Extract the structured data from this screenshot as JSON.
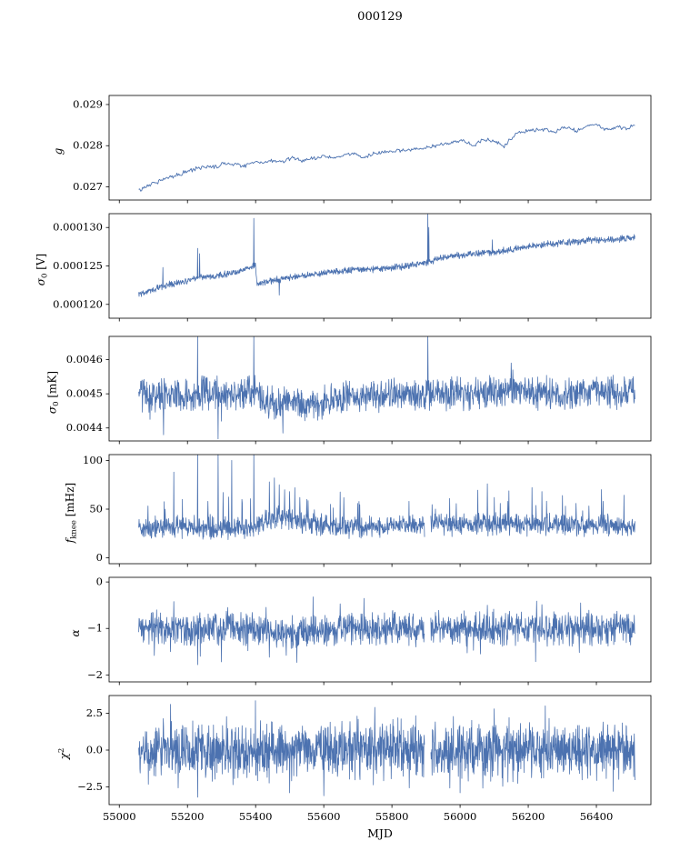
{
  "title": "000129",
  "figure": {
    "background": "#ffffff",
    "line_color": "#4c72b0",
    "axis_color": "#000000"
  },
  "x_axis": {
    "label": "MJD",
    "xlim": [
      54970,
      56560
    ],
    "tick_values": [
      55000,
      55200,
      55400,
      55600,
      55800,
      56000,
      56200,
      56400
    ],
    "tick_labels": [
      "55000",
      "55200",
      "55400",
      "55600",
      "55800",
      "56000",
      "56200",
      "56400"
    ],
    "data_range": [
      55057,
      56513
    ]
  },
  "chart_data": [
    {
      "type": "line",
      "ylabel": {
        "var": "g",
        "sub": "",
        "sup": "",
        "unit": ""
      },
      "ylim": [
        0.02668,
        0.02922
      ],
      "yticks": {
        "values": [
          0.027,
          0.028,
          0.029
        ],
        "labels": [
          "0.027",
          "0.028",
          "0.029"
        ]
      },
      "samples": 520,
      "noise": {
        "model": "uniform2",
        "amp": 6e-05
      },
      "trend": [
        [
          55057,
          0.0269
        ],
        [
          55080,
          0.02702
        ],
        [
          55110,
          0.02712
        ],
        [
          55140,
          0.02722
        ],
        [
          55170,
          0.02729
        ],
        [
          55200,
          0.02737
        ],
        [
          55230,
          0.02745
        ],
        [
          55260,
          0.0275
        ],
        [
          55280,
          0.02747
        ],
        [
          55310,
          0.02758
        ],
        [
          55340,
          0.02755
        ],
        [
          55370,
          0.02752
        ],
        [
          55400,
          0.02762
        ],
        [
          55420,
          0.02758
        ],
        [
          55450,
          0.02764
        ],
        [
          55480,
          0.02762
        ],
        [
          55510,
          0.0277
        ],
        [
          55540,
          0.02764
        ],
        [
          55570,
          0.02768
        ],
        [
          55600,
          0.02775
        ],
        [
          55630,
          0.0277
        ],
        [
          55660,
          0.02778
        ],
        [
          55690,
          0.0278
        ],
        [
          55710,
          0.0277
        ],
        [
          55740,
          0.0278
        ],
        [
          55770,
          0.02782
        ],
        [
          55800,
          0.02785
        ],
        [
          55830,
          0.02788
        ],
        [
          55860,
          0.0279
        ],
        [
          55890,
          0.02794
        ],
        [
          55920,
          0.02798
        ],
        [
          55950,
          0.02802
        ],
        [
          55980,
          0.02808
        ],
        [
          56010,
          0.02812
        ],
        [
          56040,
          0.028
        ],
        [
          56070,
          0.02815
        ],
        [
          56100,
          0.02812
        ],
        [
          56130,
          0.02798
        ],
        [
          56160,
          0.02828
        ],
        [
          56190,
          0.02833
        ],
        [
          56220,
          0.02838
        ],
        [
          56250,
          0.0284
        ],
        [
          56280,
          0.02832
        ],
        [
          56310,
          0.02845
        ],
        [
          56340,
          0.02836
        ],
        [
          56370,
          0.02848
        ],
        [
          56400,
          0.0285
        ],
        [
          56430,
          0.02838
        ],
        [
          56460,
          0.02846
        ],
        [
          56490,
          0.02842
        ],
        [
          56513,
          0.0285
        ]
      ],
      "spikes": [],
      "gaps": []
    },
    {
      "type": "line",
      "ylabel": {
        "var": "σ",
        "sub": "0",
        "sup": "",
        "unit": " [V]"
      },
      "ylim": [
        0.0001182,
        0.0001318
      ],
      "yticks": {
        "values": [
          0.00012,
          0.000125,
          0.00013
        ],
        "labels": [
          "0.000120",
          "0.000125",
          "0.000130"
        ]
      },
      "samples": 1500,
      "noise": {
        "model": "uniform2",
        "amp": 5e-07
      },
      "trend": [
        [
          55057,
          0.0001213
        ],
        [
          55100,
          0.000122
        ],
        [
          55150,
          0.0001226
        ],
        [
          55200,
          0.0001231
        ],
        [
          55250,
          0.0001236
        ],
        [
          55300,
          0.0001238
        ],
        [
          55350,
          0.0001243
        ],
        [
          55393,
          0.000125
        ],
        [
          55400,
          0.0001252
        ],
        [
          55403,
          0.0001227
        ],
        [
          55450,
          0.0001231
        ],
        [
          55500,
          0.0001235
        ],
        [
          55550,
          0.0001238
        ],
        [
          55600,
          0.0001241
        ],
        [
          55650,
          0.0001243
        ],
        [
          55700,
          0.0001245
        ],
        [
          55750,
          0.0001246
        ],
        [
          55800,
          0.0001248
        ],
        [
          55850,
          0.000125
        ],
        [
          55900,
          0.0001254
        ],
        [
          55950,
          0.0001261
        ],
        [
          56000,
          0.0001264
        ],
        [
          56050,
          0.0001266
        ],
        [
          56100,
          0.0001268
        ],
        [
          56150,
          0.0001271
        ],
        [
          56200,
          0.0001275
        ],
        [
          56250,
          0.0001278
        ],
        [
          56300,
          0.000128
        ],
        [
          56350,
          0.0001282
        ],
        [
          56400,
          0.0001284
        ],
        [
          56450,
          0.0001284
        ],
        [
          56513,
          0.0001287
        ]
      ],
      "spikes": [
        [
          55128,
          0.0001248
        ],
        [
          55230,
          0.0001273
        ],
        [
          55236,
          0.0001266
        ],
        [
          55395,
          0.0001312
        ],
        [
          55470,
          0.0001212
        ],
        [
          55905,
          0.0001317
        ],
        [
          55908,
          0.00013
        ],
        [
          56095,
          0.0001284
        ]
      ],
      "gaps": []
    },
    {
      "type": "line",
      "ylabel": {
        "var": "σ",
        "sub": "0",
        "sup": "",
        "unit": " [mK]"
      },
      "ylim": [
        0.004362,
        0.004668
      ],
      "yticks": {
        "values": [
          0.0044,
          0.0045,
          0.0046
        ],
        "labels": [
          "0.0044",
          "0.0045",
          "0.0046"
        ]
      },
      "samples": 1500,
      "noise": {
        "model": "uniform2",
        "amp": 5.5e-05
      },
      "trend": [
        [
          55057,
          0.0045
        ],
        [
          55100,
          0.004492
        ],
        [
          55150,
          0.004497
        ],
        [
          55200,
          0.0045
        ],
        [
          55250,
          0.004503
        ],
        [
          55300,
          0.0045
        ],
        [
          55350,
          0.004502
        ],
        [
          55400,
          0.004508
        ],
        [
          55425,
          0.004478
        ],
        [
          55470,
          0.004472
        ],
        [
          55520,
          0.00447
        ],
        [
          55570,
          0.004473
        ],
        [
          55620,
          0.00448
        ],
        [
          55670,
          0.004488
        ],
        [
          55720,
          0.00449
        ],
        [
          55770,
          0.004495
        ],
        [
          55820,
          0.0045
        ],
        [
          55870,
          0.004498
        ],
        [
          55920,
          0.0045
        ],
        [
          55970,
          0.0045
        ],
        [
          56020,
          0.0045
        ],
        [
          56070,
          0.004502
        ],
        [
          56120,
          0.004508
        ],
        [
          56160,
          0.004515
        ],
        [
          56200,
          0.004508
        ],
        [
          56250,
          0.004502
        ],
        [
          56300,
          0.0045
        ],
        [
          56350,
          0.004505
        ],
        [
          56400,
          0.004508
        ],
        [
          56450,
          0.004505
        ],
        [
          56513,
          0.004508
        ]
      ],
      "spikes": [
        [
          55090,
          0.004425
        ],
        [
          55130,
          0.00438
        ],
        [
          55230,
          0.004668
        ],
        [
          55290,
          0.004368
        ],
        [
          55300,
          0.00442
        ],
        [
          55395,
          0.00467
        ],
        [
          55480,
          0.004385
        ],
        [
          55905,
          0.004672
        ],
        [
          56150,
          0.00459
        ],
        [
          56155,
          0.00457
        ]
      ],
      "gaps": []
    },
    {
      "type": "line",
      "ylabel": {
        "var": "f",
        "sub": "knee",
        "sup": "",
        "unit": " [mHz]"
      },
      "ylim": [
        -6,
        106
      ],
      "yticks": {
        "values": [
          0,
          50,
          100
        ],
        "labels": [
          "0",
          "50",
          "100"
        ]
      },
      "samples": 1500,
      "noise": {
        "model": "uniform2",
        "amp": 13,
        "tail_prob": 0.025,
        "tail_base": 8,
        "tail_scale": 30,
        "tail_sign": 1
      },
      "trend": [
        [
          55057,
          30
        ],
        [
          55100,
          31
        ],
        [
          55150,
          32
        ],
        [
          55200,
          31
        ],
        [
          55250,
          31
        ],
        [
          55300,
          31
        ],
        [
          55350,
          31
        ],
        [
          55400,
          33
        ],
        [
          55430,
          38
        ],
        [
          55460,
          42
        ],
        [
          55490,
          41
        ],
        [
          55520,
          38
        ],
        [
          55560,
          35
        ],
        [
          55600,
          33
        ],
        [
          55650,
          32
        ],
        [
          55700,
          32
        ],
        [
          55750,
          33
        ],
        [
          55800,
          33
        ],
        [
          55850,
          33
        ],
        [
          55900,
          33
        ],
        [
          55950,
          34
        ],
        [
          56000,
          34
        ],
        [
          56050,
          35
        ],
        [
          56100,
          35
        ],
        [
          56150,
          34
        ],
        [
          56200,
          33
        ],
        [
          56250,
          34
        ],
        [
          56300,
          34
        ],
        [
          56350,
          33
        ],
        [
          56400,
          33
        ],
        [
          56450,
          33
        ],
        [
          56513,
          32
        ]
      ],
      "spikes": [
        [
          55160,
          88
        ],
        [
          55185,
          60
        ],
        [
          55230,
          108
        ],
        [
          55260,
          58
        ],
        [
          55290,
          108
        ],
        [
          55330,
          100
        ],
        [
          55360,
          60
        ],
        [
          55395,
          108
        ],
        [
          55440,
          78
        ],
        [
          55455,
          82
        ],
        [
          55470,
          75
        ],
        [
          55485,
          70
        ],
        [
          55500,
          68
        ],
        [
          55515,
          72
        ],
        [
          55530,
          62
        ],
        [
          55550,
          60
        ],
        [
          55620,
          55
        ],
        [
          55700,
          56
        ],
        [
          55850,
          58
        ],
        [
          56080,
          76
        ],
        [
          56100,
          62
        ],
        [
          56140,
          58
        ],
        [
          56300,
          64
        ],
        [
          56340,
          56
        ],
        [
          56420,
          58
        ]
      ],
      "gaps": [
        [
          55896,
          55914
        ]
      ]
    },
    {
      "type": "line",
      "ylabel": {
        "var": "α",
        "sub": "",
        "sup": "",
        "unit": ""
      },
      "ylim": [
        -2.15,
        0.1
      ],
      "yticks": {
        "values": [
          0,
          -1,
          -2
        ],
        "labels": [
          "0",
          "−1",
          "−2"
        ]
      },
      "samples": 1500,
      "noise": {
        "model": "uniform2",
        "amp": 0.42,
        "tail_prob": 0.02,
        "tail_base": 0.15,
        "tail_scale": 0.35,
        "tail_sign": 0
      },
      "trend": [
        [
          55057,
          -1.0
        ],
        [
          55150,
          -1.0
        ],
        [
          55250,
          -1.02
        ],
        [
          55350,
          -1.0
        ],
        [
          55420,
          -1.05
        ],
        [
          55470,
          -1.12
        ],
        [
          55530,
          -1.12
        ],
        [
          55590,
          -1.06
        ],
        [
          55650,
          -1.02
        ],
        [
          55750,
          -1.0
        ],
        [
          55850,
          -1.0
        ],
        [
          55950,
          -1.0
        ],
        [
          56050,
          -1.0
        ],
        [
          56150,
          -0.98
        ],
        [
          56250,
          -1.0
        ],
        [
          56350,
          -1.0
        ],
        [
          56450,
          -1.0
        ],
        [
          56513,
          -1.0
        ]
      ],
      "spikes": [
        [
          55150,
          -1.5
        ],
        [
          55160,
          -0.42
        ],
        [
          55230,
          -1.78
        ],
        [
          55238,
          -1.6
        ],
        [
          55300,
          -1.72
        ],
        [
          55440,
          -1.62
        ],
        [
          55490,
          -1.58
        ],
        [
          56060,
          -1.55
        ],
        [
          56080,
          -0.5
        ],
        [
          56350,
          -1.52
        ]
      ],
      "gaps": [
        [
          55896,
          55914
        ]
      ]
    },
    {
      "type": "line",
      "ylabel": {
        "var": "χ",
        "sub": "",
        "sup": "2",
        "unit": ""
      },
      "ylim": [
        -3.7,
        3.7
      ],
      "yticks": {
        "values": [
          2.5,
          0.0,
          -2.5
        ],
        "labels": [
          "2.5",
          "0.0",
          "−2.5"
        ]
      },
      "samples": 1700,
      "noise": {
        "model": "gauss4",
        "amp": 1.55
      },
      "trend": [
        [
          55057,
          0
        ],
        [
          56513,
          0
        ]
      ],
      "spikes": [
        [
          55150,
          3.1
        ],
        [
          55230,
          -3.2
        ],
        [
          55400,
          3.35
        ],
        [
          55500,
          -2.9
        ],
        [
          55600,
          -3.1
        ],
        [
          55750,
          2.9
        ],
        [
          56000,
          -2.9
        ],
        [
          56100,
          2.8
        ],
        [
          56250,
          3.0
        ],
        [
          56450,
          -2.8
        ]
      ],
      "gaps": [
        [
          55896,
          55914
        ]
      ]
    }
  ]
}
